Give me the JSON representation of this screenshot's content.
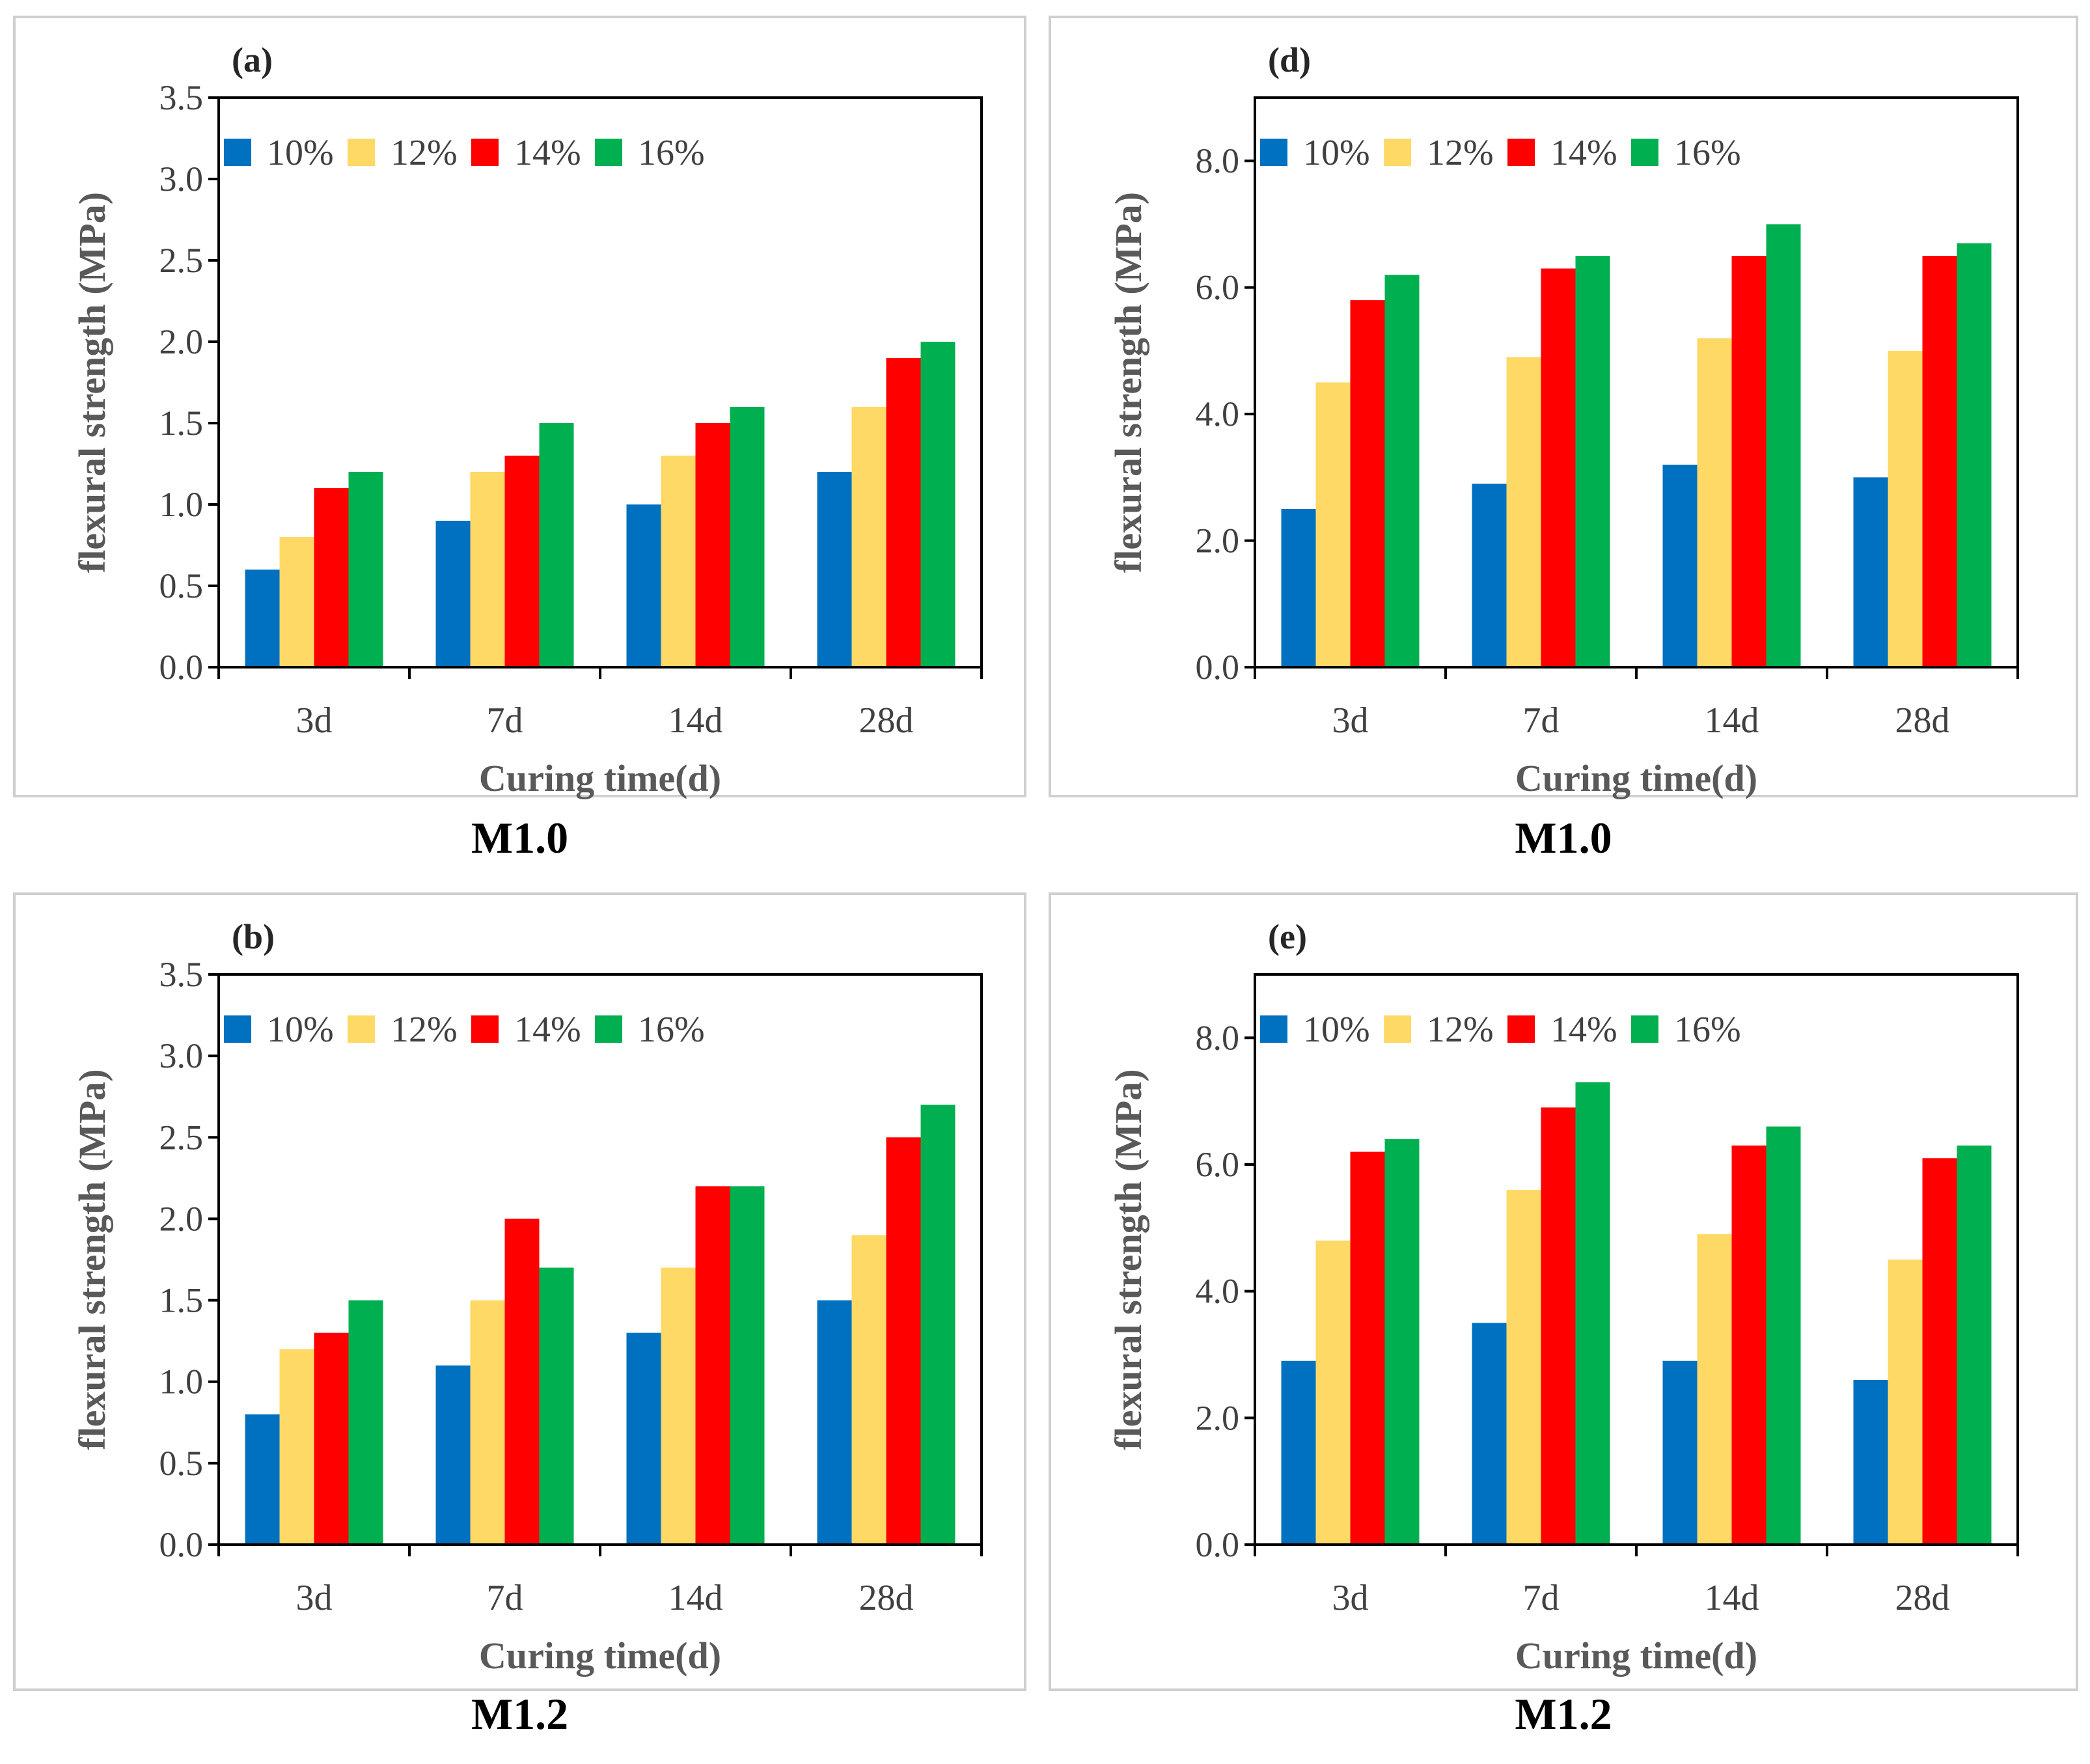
{
  "colors": {
    "series": [
      "#0070C0",
      "#FFD966",
      "#FF0000",
      "#00B050"
    ],
    "axis": "#000000",
    "panel_border": "#cfcfcf",
    "tick_text": "#404040",
    "axis_title": "#595959"
  },
  "chart_data": [
    {
      "type": "bar",
      "panel_label": "(a)",
      "caption": "M1.0",
      "xlabel": "Curing  time(d)",
      "ylabel": "flexural strength (MPa)",
      "categories": [
        "3d",
        "7d",
        "14d",
        "28d"
      ],
      "ylim": [
        0,
        3.5
      ],
      "yticks": [
        "0.0",
        "0.5",
        "1.0",
        "1.5",
        "2.0",
        "2.5",
        "3.0",
        "3.5"
      ],
      "ytick_values": [
        0,
        0.5,
        1.0,
        1.5,
        2.0,
        2.5,
        3.0,
        3.5
      ],
      "legend_position": "top-left",
      "series": [
        {
          "name": "10%",
          "values": [
            0.6,
            0.9,
            1.0,
            1.2
          ]
        },
        {
          "name": "12%",
          "values": [
            0.8,
            1.2,
            1.3,
            1.6
          ]
        },
        {
          "name": "14%",
          "values": [
            1.1,
            1.3,
            1.5,
            1.9
          ]
        },
        {
          "name": "16%",
          "values": [
            1.2,
            1.5,
            1.6,
            2.0
          ]
        }
      ]
    },
    {
      "type": "bar",
      "panel_label": "(d)",
      "caption": "M1.0",
      "xlabel": "Curing  time(d)",
      "ylabel": "flexural strength (MPa)",
      "categories": [
        "3d",
        "7d",
        "14d",
        "28d"
      ],
      "ylim": [
        0,
        9.0
      ],
      "yticks": [
        "0.0",
        "2.0",
        "4.0",
        "6.0",
        "8.0"
      ],
      "ytick_values": [
        0,
        2.0,
        4.0,
        6.0,
        8.0
      ],
      "legend_position": "top-left",
      "series": [
        {
          "name": "10%",
          "values": [
            2.5,
            2.9,
            3.2,
            3.0
          ]
        },
        {
          "name": "12%",
          "values": [
            4.5,
            4.9,
            5.2,
            5.0
          ]
        },
        {
          "name": "14%",
          "values": [
            5.8,
            6.3,
            6.5,
            6.5
          ]
        },
        {
          "name": "16%",
          "values": [
            6.2,
            6.5,
            7.0,
            6.7
          ]
        }
      ]
    },
    {
      "type": "bar",
      "panel_label": "(b)",
      "caption": "M1.2",
      "xlabel": "Curing  time(d)",
      "ylabel": "flexural strength (MPa)",
      "categories": [
        "3d",
        "7d",
        "14d",
        "28d"
      ],
      "ylim": [
        0,
        3.5
      ],
      "yticks": [
        "0.0",
        "0.5",
        "1.0",
        "1.5",
        "2.0",
        "2.5",
        "3.0",
        "3.5"
      ],
      "ytick_values": [
        0,
        0.5,
        1.0,
        1.5,
        2.0,
        2.5,
        3.0,
        3.5
      ],
      "legend_position": "top-left",
      "series": [
        {
          "name": "10%",
          "values": [
            0.8,
            1.1,
            1.3,
            1.5
          ]
        },
        {
          "name": "12%",
          "values": [
            1.2,
            1.5,
            1.7,
            1.9
          ]
        },
        {
          "name": "14%",
          "values": [
            1.3,
            2.0,
            2.2,
            2.5
          ]
        },
        {
          "name": "16%",
          "values": [
            1.5,
            1.7,
            2.2,
            2.7
          ]
        }
      ]
    },
    {
      "type": "bar",
      "panel_label": "(e)",
      "caption": "M1.2",
      "xlabel": "Curing  time(d)",
      "ylabel": "flexural strength (MPa)",
      "categories": [
        "3d",
        "7d",
        "14d",
        "28d"
      ],
      "ylim": [
        0,
        9.0
      ],
      "yticks": [
        "0.0",
        "2.0",
        "4.0",
        "6.0",
        "8.0"
      ],
      "ytick_values": [
        0,
        2.0,
        4.0,
        6.0,
        8.0
      ],
      "legend_position": "top-left",
      "series": [
        {
          "name": "10%",
          "values": [
            2.9,
            3.5,
            2.9,
            2.6
          ]
        },
        {
          "name": "12%",
          "values": [
            4.8,
            5.6,
            4.9,
            4.5
          ]
        },
        {
          "name": "14%",
          "values": [
            6.2,
            6.9,
            6.3,
            6.1
          ]
        },
        {
          "name": "16%",
          "values": [
            6.4,
            7.3,
            6.6,
            6.3
          ]
        }
      ]
    }
  ]
}
